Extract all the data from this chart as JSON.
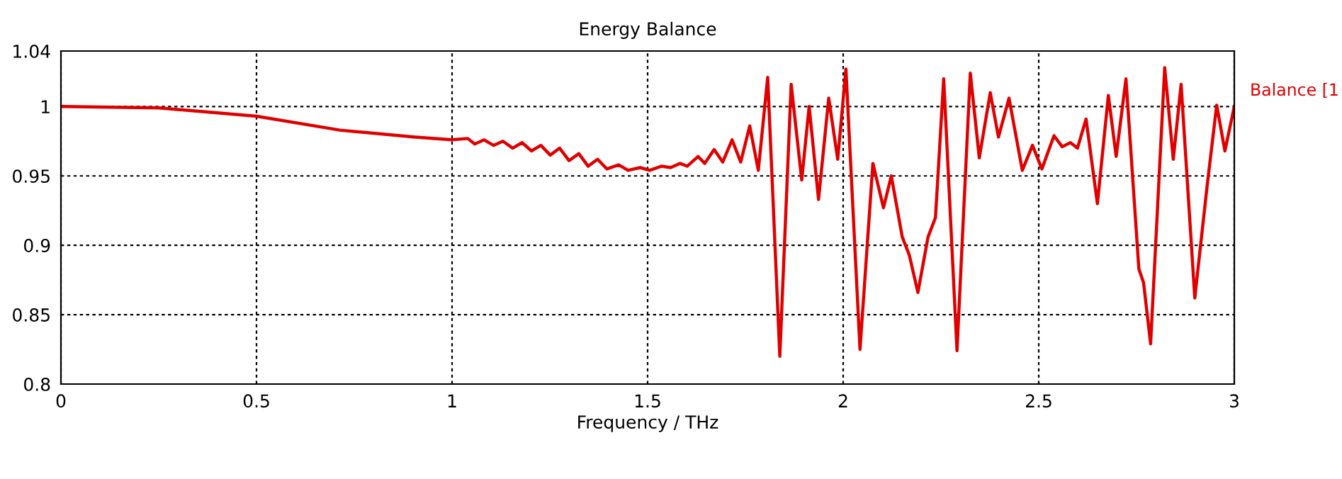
{
  "chart_data": {
    "type": "line",
    "title": "Energy Balance",
    "xlabel": "Frequency / THz",
    "xlim": [
      0,
      3
    ],
    "ylim": [
      0.8,
      1.04
    ],
    "xticks": [
      0,
      0.5,
      1,
      1.5,
      2,
      2.5,
      3
    ],
    "yticks": [
      0.8,
      0.85,
      0.9,
      0.95,
      1,
      1.04
    ],
    "grid": true,
    "legend": "right",
    "line_style": "solid",
    "marker": "none",
    "series": [
      {
        "name": "Balance [1",
        "color": "#e00000",
        "x": [
          0,
          0.25,
          0.5,
          0.713,
          0.906,
          1.0,
          1.04,
          1.058,
          1.082,
          1.106,
          1.13,
          1.155,
          1.179,
          1.203,
          1.227,
          1.251,
          1.275,
          1.299,
          1.324,
          1.348,
          1.372,
          1.396,
          1.426,
          1.45,
          1.481,
          1.505,
          1.535,
          1.559,
          1.583,
          1.601,
          1.629,
          1.646,
          1.67,
          1.692,
          1.716,
          1.738,
          1.761,
          1.783,
          1.807,
          1.838,
          1.867,
          1.894,
          1.913,
          1.937,
          1.963,
          1.986,
          2.007,
          2.043,
          2.076,
          2.103,
          2.123,
          2.151,
          2.169,
          2.191,
          2.217,
          2.236,
          2.257,
          2.291,
          2.325,
          2.348,
          2.376,
          2.397,
          2.424,
          2.458,
          2.484,
          2.508,
          2.539,
          2.56,
          2.581,
          2.599,
          2.621,
          2.65,
          2.678,
          2.698,
          2.723,
          2.756,
          2.768,
          2.786,
          2.822,
          2.844,
          2.864,
          2.899,
          2.931,
          2.955,
          2.976,
          3.0
        ],
        "values": [
          1.0,
          0.999,
          0.993,
          0.983,
          0.978,
          0.976,
          0.977,
          0.973,
          0.976,
          0.972,
          0.975,
          0.97,
          0.974,
          0.968,
          0.972,
          0.965,
          0.97,
          0.961,
          0.966,
          0.957,
          0.962,
          0.955,
          0.958,
          0.954,
          0.956,
          0.954,
          0.957,
          0.956,
          0.959,
          0.957,
          0.964,
          0.959,
          0.969,
          0.96,
          0.976,
          0.96,
          0.986,
          0.954,
          1.021,
          0.82,
          1.016,
          0.947,
          1.0,
          0.933,
          1.006,
          0.962,
          1.027,
          0.825,
          0.959,
          0.927,
          0.95,
          0.906,
          0.893,
          0.866,
          0.906,
          0.92,
          1.02,
          0.824,
          1.024,
          0.963,
          1.01,
          0.978,
          1.006,
          0.954,
          0.972,
          0.955,
          0.979,
          0.971,
          0.974,
          0.97,
          0.991,
          0.93,
          1.008,
          0.964,
          1.02,
          0.883,
          0.873,
          0.829,
          1.028,
          0.962,
          1.016,
          0.862,
          0.944,
          1.001,
          0.968,
          1.0
        ]
      }
    ]
  }
}
